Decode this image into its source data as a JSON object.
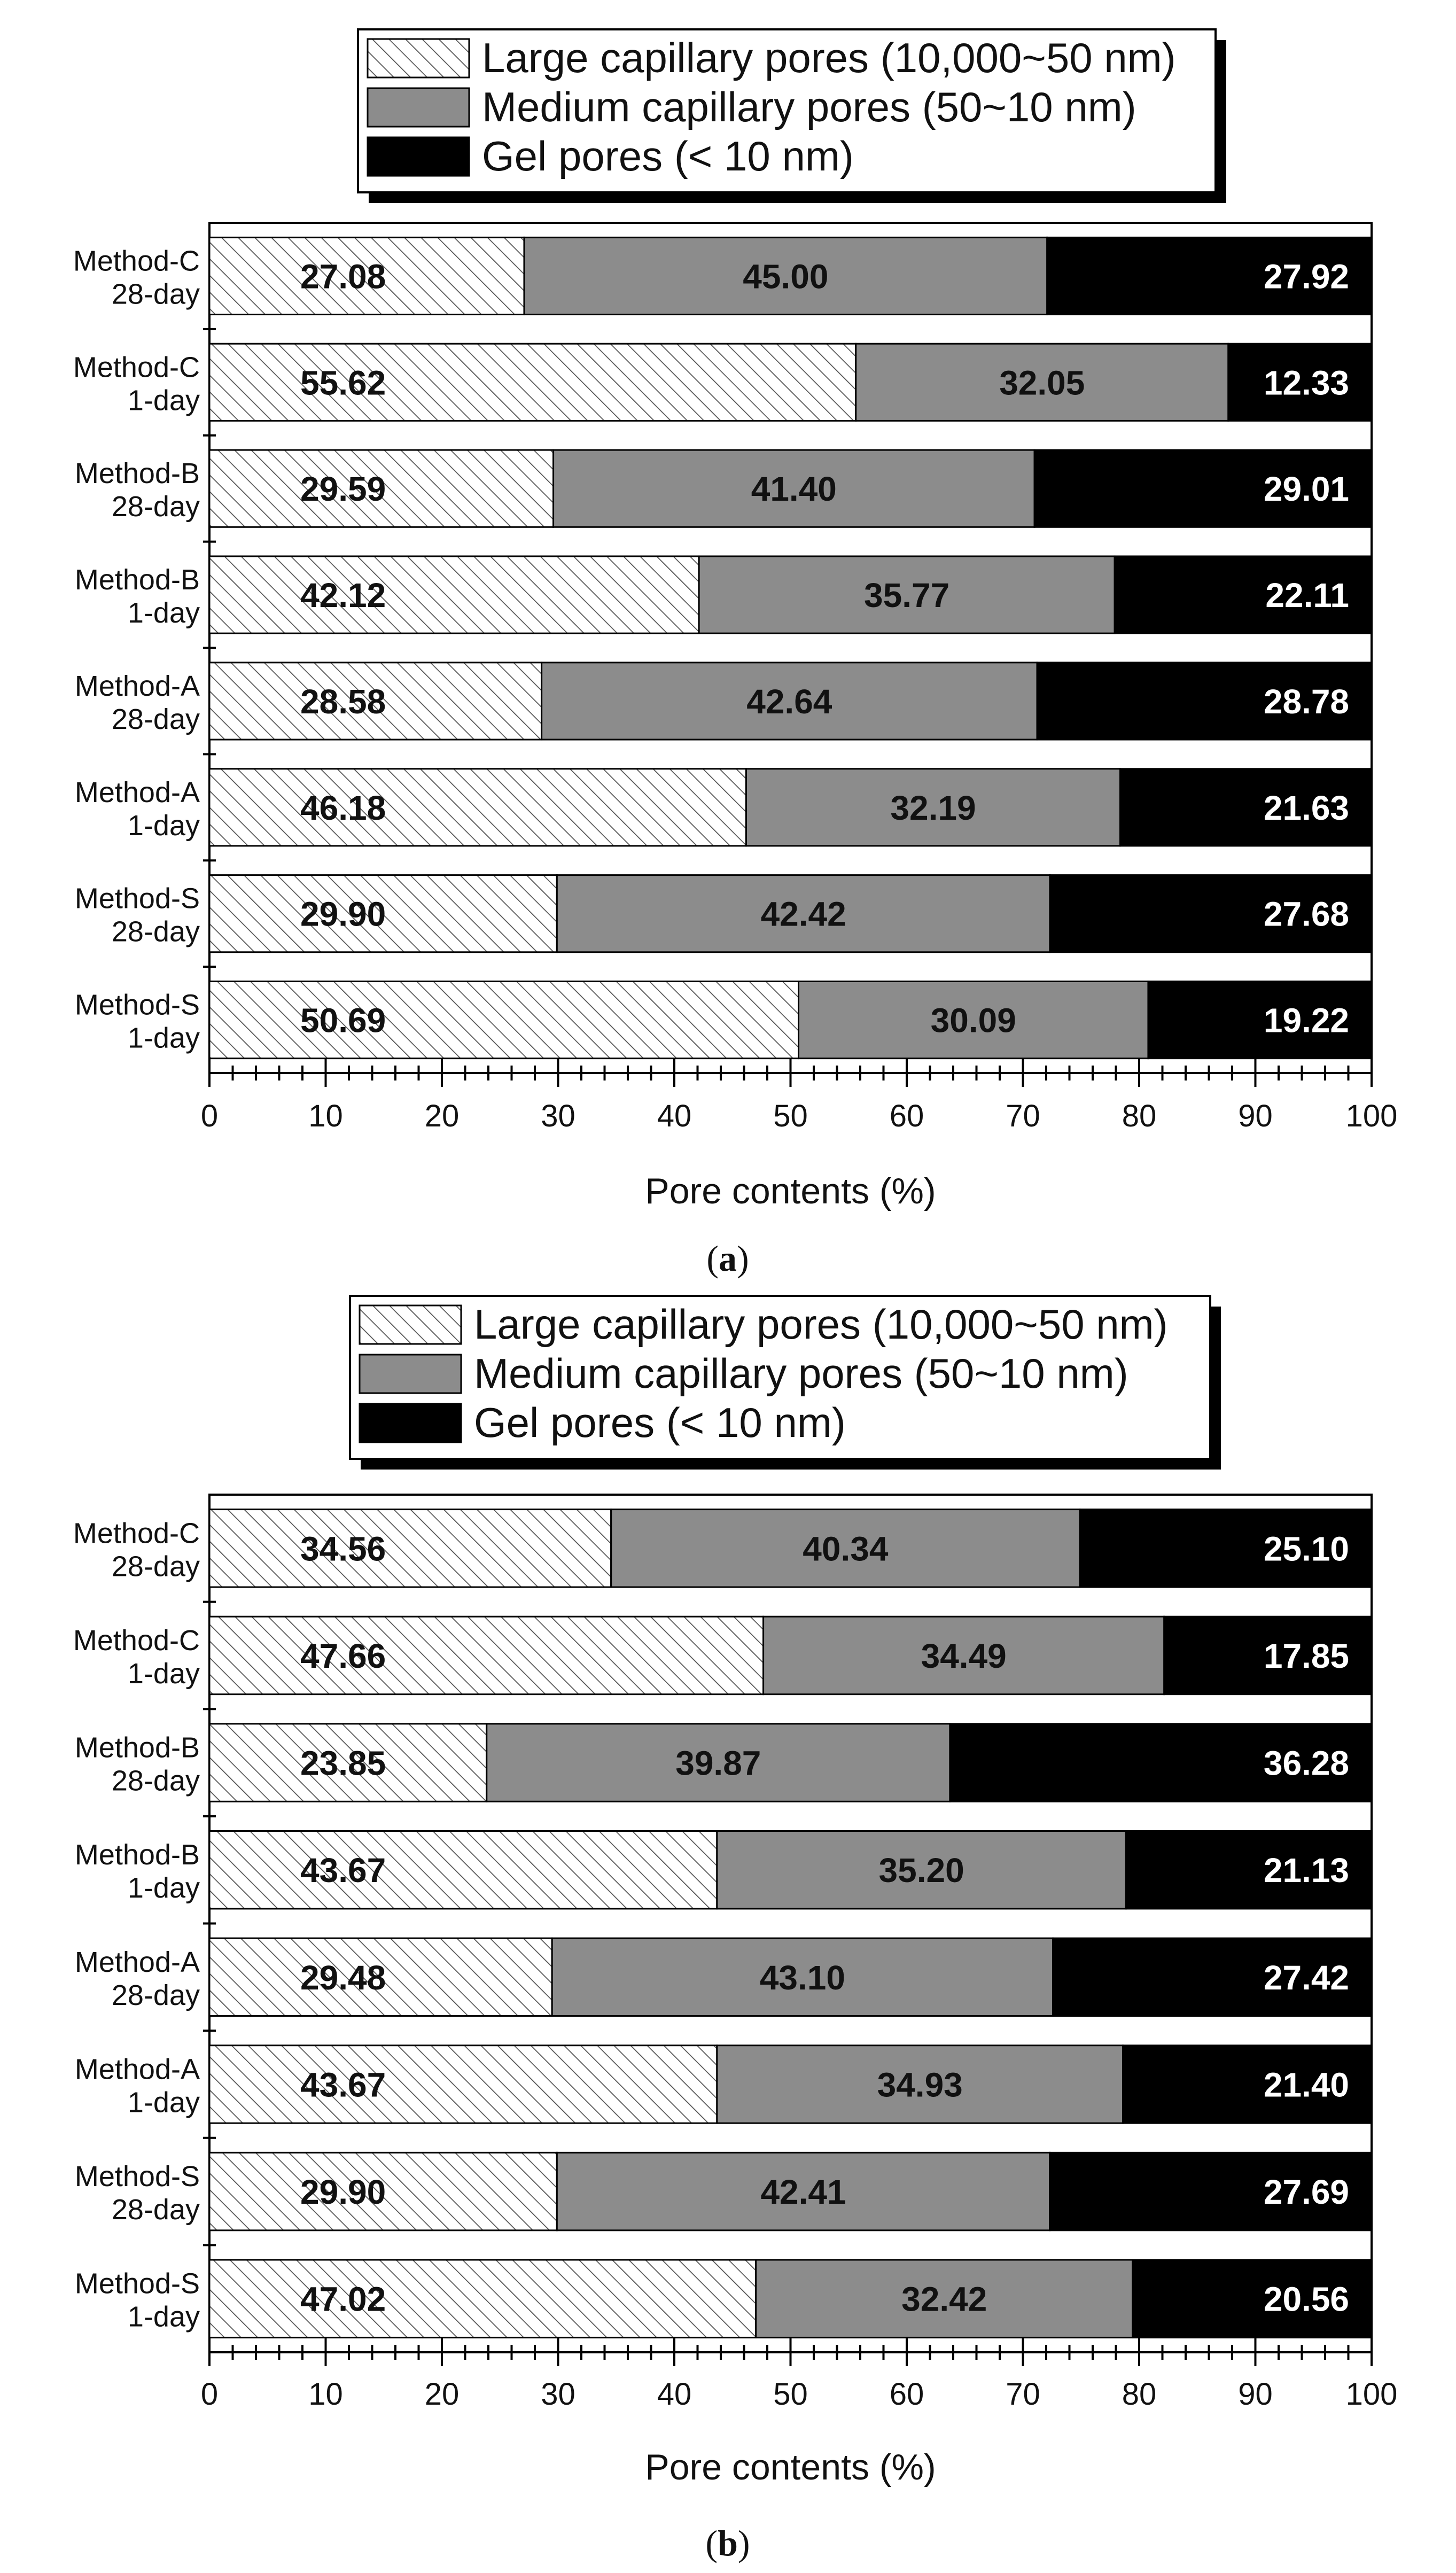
{
  "figure": {
    "colors": {
      "large": "#ffffff",
      "medium": "#8c8c8c",
      "gel": "#000000",
      "hatch": "#555555",
      "text_dark": "#111111",
      "text_light": "#ffffff"
    }
  },
  "chart_data": [
    {
      "type": "bar",
      "orientation": "horizontal",
      "stacked": true,
      "panel_label": "a",
      "legend": [
        "Large capillary pores (10,000~50 nm)",
        "Medium capillary pores (50~10 nm)",
        "Gel pores (< 10 nm)"
      ],
      "categories": [
        "Method-C 28-day",
        "Method-C 1-day",
        "Method-B 28-day",
        "Method-B 1-day",
        "Method-A 28-day",
        "Method-A 1-day",
        "Method-S 28-day",
        "Method-S 1-day"
      ],
      "series": [
        {
          "name": "Large capillary pores (10,000~50 nm)",
          "values": [
            27.08,
            55.62,
            29.59,
            42.12,
            28.58,
            46.18,
            29.9,
            50.69
          ],
          "labels": [
            "27.08",
            "55.62",
            "29.59",
            "42.12",
            "28.58",
            "46.18",
            "29.90",
            "50.69"
          ]
        },
        {
          "name": "Medium capillary pores (50~10 nm)",
          "values": [
            45.0,
            32.05,
            41.4,
            35.77,
            42.64,
            32.19,
            42.42,
            30.09
          ],
          "labels": [
            "45.00",
            "32.05",
            "41.40",
            "35.77",
            "42.64",
            "32.19",
            "42.42",
            "30.09"
          ]
        },
        {
          "name": "Gel pores (< 10 nm)",
          "values": [
            27.92,
            12.33,
            29.01,
            22.11,
            28.78,
            21.63,
            27.68,
            19.22
          ],
          "labels": [
            "27.92",
            "12.33",
            "29.01",
            "22.11",
            "28.78",
            "21.63",
            "27.68",
            "19.22"
          ]
        }
      ],
      "xlabel": "Pore contents (%)",
      "xlim": [
        0,
        100
      ],
      "xticks": [
        0,
        10,
        20,
        30,
        40,
        50,
        60,
        70,
        80,
        90,
        100
      ],
      "legend_position": "top-center"
    },
    {
      "type": "bar",
      "orientation": "horizontal",
      "stacked": true,
      "panel_label": "b",
      "legend": [
        "Large capillary pores (10,000~50 nm)",
        "Medium capillary pores (50~10 nm)",
        "Gel pores (< 10 nm)"
      ],
      "categories": [
        "Method-C 28-day",
        "Method-C 1-day",
        "Method-B 28-day",
        "Method-B 1-day",
        "Method-A 28-day",
        "Method-A 1-day",
        "Method-S 28-day",
        "Method-S 1-day"
      ],
      "series": [
        {
          "name": "Large capillary pores (10,000~50 nm)",
          "values": [
            34.56,
            47.66,
            23.85,
            43.67,
            29.48,
            43.67,
            29.9,
            47.02
          ],
          "labels": [
            "34.56",
            "47.66",
            "23.85",
            "43.67",
            "29.48",
            "43.67",
            "29.90",
            "47.02"
          ]
        },
        {
          "name": "Medium capillary pores (50~10 nm)",
          "values": [
            40.34,
            34.49,
            39.87,
            35.2,
            43.1,
            34.93,
            42.41,
            32.42
          ],
          "labels": [
            "40.34",
            "34.49",
            "39.87",
            "35.20",
            "43.10",
            "34.93",
            "42.41",
            "32.42"
          ]
        },
        {
          "name": "Gel pores (< 10 nm)",
          "values": [
            25.1,
            17.85,
            36.28,
            21.13,
            27.42,
            21.4,
            27.69,
            20.56
          ],
          "labels": [
            "25.10",
            "17.85",
            "36.28",
            "21.13",
            "27.42",
            "21.40",
            "27.69",
            "20.56"
          ]
        }
      ],
      "xlabel": "Pore contents (%)",
      "xlim": [
        0,
        100
      ],
      "xticks": [
        0,
        10,
        20,
        30,
        40,
        50,
        60,
        70,
        80,
        90,
        100
      ],
      "legend_position": "top-center"
    }
  ]
}
